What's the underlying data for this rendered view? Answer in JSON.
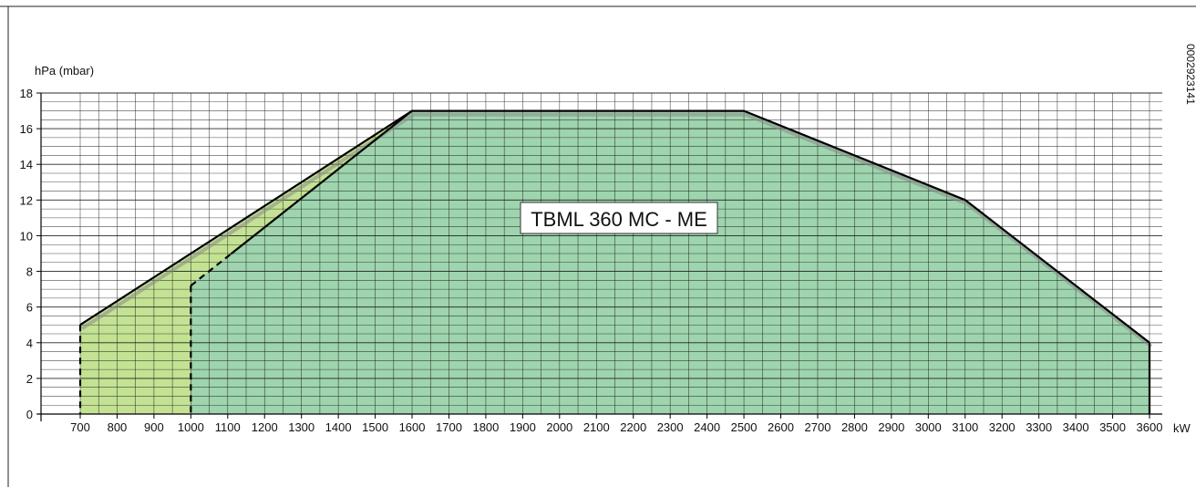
{
  "chart_data": {
    "type": "area",
    "label": "TBML 360 MC - ME",
    "side_code": "0002923141",
    "ylabel": "hPa (mbar)",
    "xlabel": "kW",
    "xlim": [
      700,
      3600
    ],
    "ylim": [
      0,
      18
    ],
    "xticks": [
      700,
      800,
      900,
      1000,
      1100,
      1200,
      1300,
      1400,
      1500,
      1600,
      1700,
      1800,
      1900,
      2000,
      2100,
      2200,
      2300,
      2400,
      2500,
      2600,
      2700,
      2800,
      2900,
      3000,
      3100,
      3200,
      3300,
      3400,
      3500,
      3600
    ],
    "yticks": [
      0,
      2,
      4,
      6,
      8,
      10,
      12,
      14,
      16,
      18
    ],
    "grid": true,
    "colors": {
      "light_area": "#c3e293",
      "main_area": "#9ed4ae",
      "grid": "#111111",
      "outline": "#000000",
      "shadow": "#8a8a8a"
    },
    "series": [
      {
        "values": [
          [
            700,
            0
          ],
          [
            700,
            5
          ],
          [
            1600,
            17
          ],
          [
            2500,
            17
          ],
          [
            3100,
            12
          ],
          [
            3600,
            4
          ],
          [
            3600,
            0
          ]
        ]
      },
      {
        "values": [
          [
            1000,
            0
          ],
          [
            1000,
            7.2
          ],
          [
            1600,
            17
          ],
          [
            2500,
            17
          ],
          [
            3100,
            12
          ],
          [
            3600,
            4
          ],
          [
            3600,
            0
          ]
        ]
      }
    ]
  }
}
